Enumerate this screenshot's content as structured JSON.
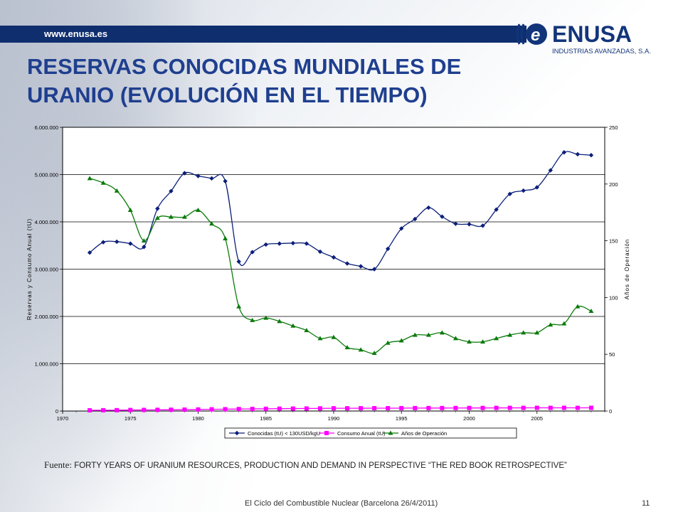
{
  "header": {
    "url": "www.enusa.es",
    "logo_name": "ENUSA",
    "logo_sub": "INDUSTRIAS AVANZADAS, S.A.",
    "title_line1": "RESERVAS CONOCIDAS MUNDIALES DE",
    "title_line2": "URANIO (EVOLUCIÓN EN EL TIEMPO)"
  },
  "source": {
    "label": "Fuente:",
    "text": " FORTY YEARS OF URANIUM RESOURCES, PRODUCTION  AND DEMAND IN PERSPECTIVE “THE RED BOOK RETROSPECTIVE”"
  },
  "footer": {
    "text": "El Ciclo del Combustible Nuclear (Barcelona 26/4/2011)",
    "page": "11"
  },
  "colors": {
    "bar": "#0e2e6e",
    "title": "#1f3f8f",
    "reserves": "#0c1f7a",
    "consumption": "#ff00ff",
    "years": "#0a7a0a"
  },
  "chart_data": {
    "type": "line",
    "xlabel": "",
    "ylabel": "Reservas y Consumo Anual (tU)",
    "ylabel_right": "Años de Operación",
    "xlim": [
      1970,
      2010
    ],
    "ylim": [
      0,
      6000000
    ],
    "ylim_right": [
      0,
      250
    ],
    "xticks": [
      "1970",
      "1975",
      "1980",
      "1985",
      "1990",
      "1995",
      "2000",
      "2005"
    ],
    "xtick_values": [
      1970,
      1975,
      1980,
      1985,
      1990,
      1995,
      2000,
      2005
    ],
    "yticks": [
      "0",
      "1.000.000",
      "2.000.000",
      "3.000.000",
      "4.000.000",
      "5.000.000",
      "6.000.000"
    ],
    "ytick_values": [
      0,
      1000000,
      2000000,
      3000000,
      4000000,
      5000000,
      6000000
    ],
    "yticks_right": [
      "0",
      "50",
      "100",
      "150",
      "200",
      "250"
    ],
    "ytick_values_right": [
      0,
      50,
      100,
      150,
      200,
      250
    ],
    "grid": true,
    "legend_position": "bottom",
    "x": [
      1972,
      1973,
      1974,
      1975,
      1976,
      1977,
      1978,
      1979,
      1980,
      1981,
      1982,
      1983,
      1984,
      1985,
      1986,
      1987,
      1988,
      1989,
      1990,
      1991,
      1992,
      1993,
      1994,
      1995,
      1996,
      1997,
      1998,
      1999,
      2000,
      2001,
      2002,
      2003,
      2004,
      2005,
      2006,
      2007,
      2008,
      2009
    ],
    "series": [
      {
        "name": "Conocidas (tU) < 130USD/kgU",
        "axis": "left",
        "marker": "diamond",
        "values": [
          3350000,
          3570000,
          3580000,
          3540000,
          3470000,
          4280000,
          4650000,
          5030000,
          4970000,
          4920000,
          4860000,
          3160000,
          3360000,
          3520000,
          3540000,
          3550000,
          3540000,
          3370000,
          3250000,
          3120000,
          3060000,
          3000000,
          3430000,
          3860000,
          4060000,
          4300000,
          4110000,
          3960000,
          3950000,
          3920000,
          4260000,
          4590000,
          4660000,
          4730000,
          5090000,
          5470000,
          5430000,
          5410000
        ]
      },
      {
        "name": "Consumo Anual (tU)",
        "axis": "left",
        "marker": "square",
        "values": [
          15000,
          17000,
          18000,
          21000,
          23000,
          25000,
          27000,
          30000,
          33000,
          36000,
          39000,
          42000,
          45000,
          47000,
          50000,
          52000,
          54000,
          56000,
          58000,
          58000,
          59000,
          60000,
          60000,
          61000,
          62000,
          63000,
          63000,
          64000,
          65000,
          65000,
          66000,
          67000,
          67000,
          68000,
          67000,
          68000,
          67000,
          68000
        ]
      },
      {
        "name": "Años de Operación",
        "axis": "right",
        "marker": "triangle",
        "values": [
          205,
          201,
          194,
          177,
          150,
          170,
          171,
          171,
          177,
          165,
          152,
          92,
          80,
          82,
          79,
          75,
          71,
          64,
          65,
          56,
          54,
          51,
          60,
          62,
          67,
          67,
          69,
          64,
          61,
          61,
          64,
          67,
          69,
          69,
          76,
          77,
          92,
          88
        ]
      }
    ]
  }
}
